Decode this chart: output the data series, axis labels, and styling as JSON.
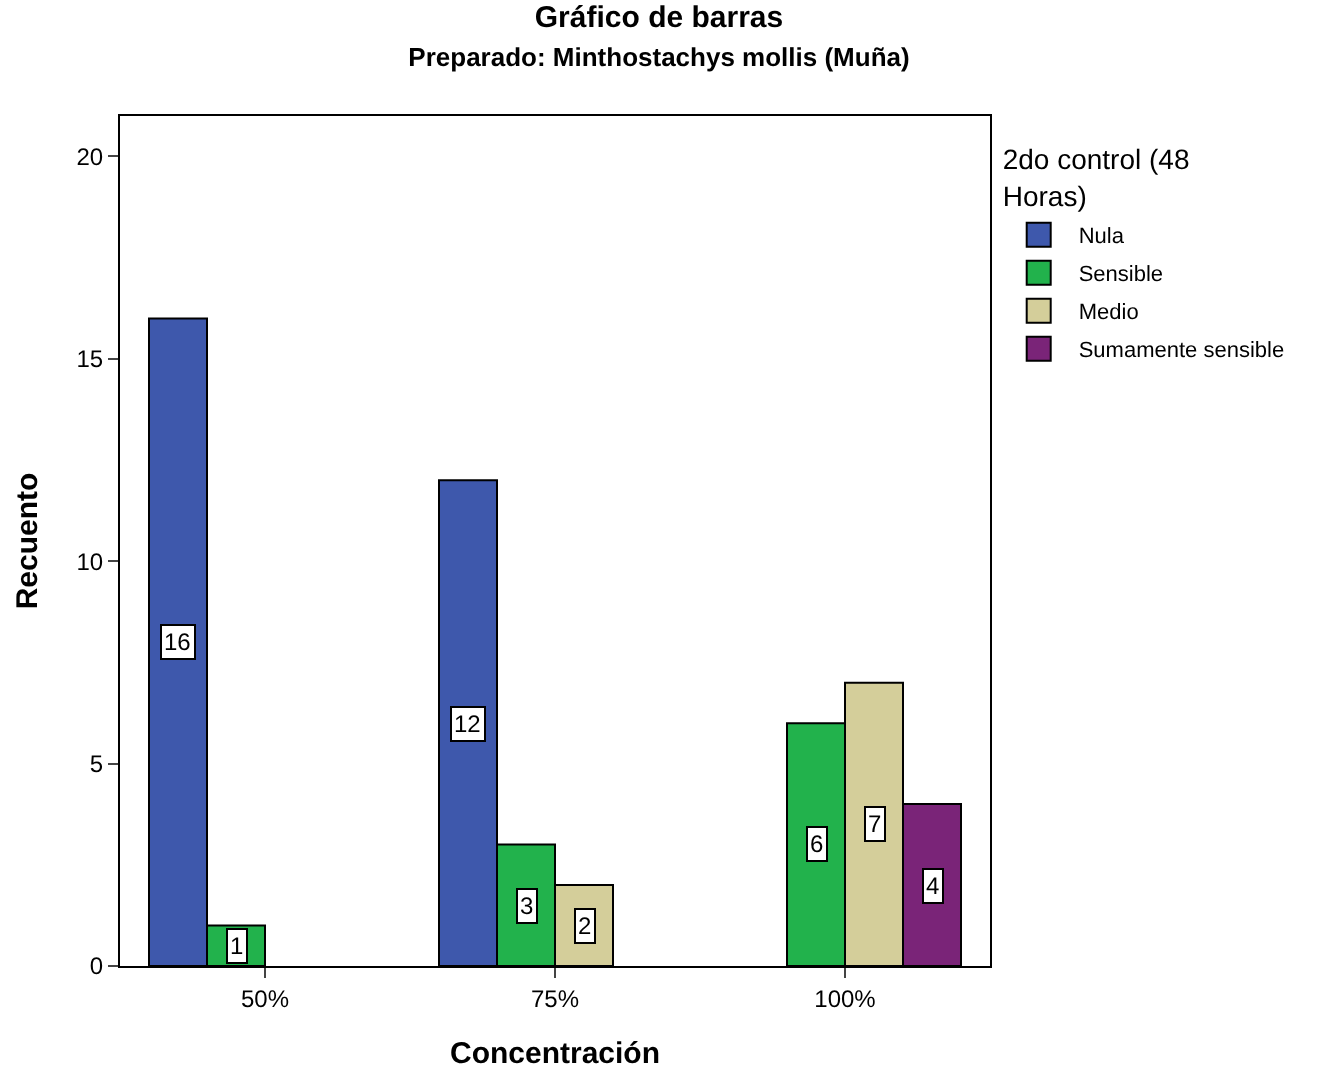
{
  "chart_data": {
    "type": "bar",
    "title": "Gráfico de barras",
    "subtitle": "Preparado: Minthostachys mollis (Muña)",
    "xlabel": "Concentración",
    "ylabel": "Recuento",
    "legend_title": "2do control (48 Horas)",
    "categories": [
      "50%",
      "75%",
      "100%"
    ],
    "series": [
      {
        "name": "Nula",
        "color": "#3e58ac",
        "values": [
          16,
          12,
          null
        ]
      },
      {
        "name": "Sensible",
        "color": "#22b24c",
        "values": [
          1,
          3,
          6
        ]
      },
      {
        "name": "Medio",
        "color": "#d4ce9a",
        "values": [
          null,
          2,
          7
        ]
      },
      {
        "name": "Sumamente sensible",
        "color": "#7a2478",
        "values": [
          null,
          null,
          4
        ]
      }
    ],
    "ylim": [
      0,
      21
    ],
    "yticks": [
      0,
      5,
      10,
      15,
      20
    ],
    "legend": "top right",
    "data_labels": true
  }
}
